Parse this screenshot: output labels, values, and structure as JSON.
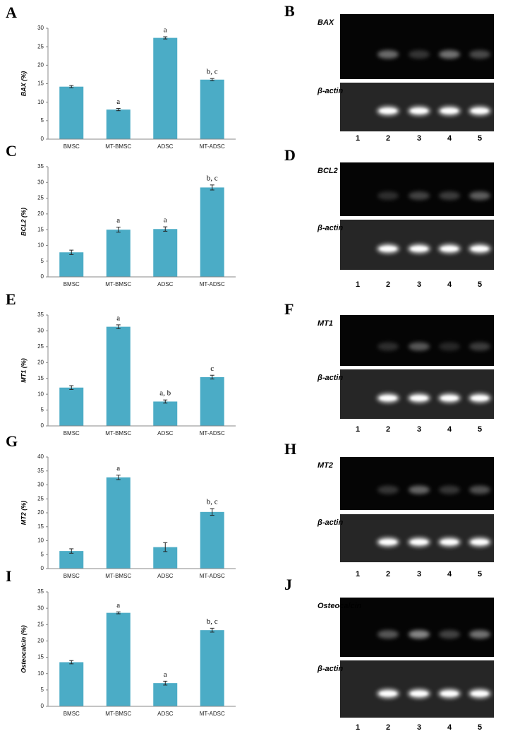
{
  "chart_data": [
    {
      "type": "bar",
      "panel": "A",
      "y_label": "BAX (%)",
      "categories": [
        "BMSC",
        "MT-BMSC",
        "ADSC",
        "MT-ADSC"
      ],
      "values": [
        14.2,
        8,
        27.4,
        16.1
      ],
      "errors": [
        0.3,
        0.3,
        0.3,
        0.3
      ],
      "annotations": [
        null,
        "a",
        "a",
        "b, c"
      ],
      "color": "#4bacc6",
      "ylim": [
        0,
        30
      ],
      "yticks": [
        0,
        5,
        10,
        15,
        20,
        25,
        30
      ]
    },
    {
      "type": "bar",
      "panel": "C",
      "y_label": "BCL2 (%)",
      "categories": [
        "BMSC",
        "MT-BMSC",
        "ADSC",
        "MT-ADSC"
      ],
      "values": [
        7.8,
        15,
        15.2,
        28.4
      ],
      "errors": [
        0.7,
        0.8,
        0.7,
        0.8
      ],
      "annotations": [
        null,
        "a",
        "a",
        "b, c"
      ],
      "color": "#4bacc6",
      "ylim": [
        0,
        35
      ],
      "yticks": [
        0,
        5,
        10,
        15,
        20,
        25,
        30,
        35
      ]
    },
    {
      "type": "bar",
      "panel": "E",
      "y_label": "MT1 (%)",
      "categories": [
        "BMSC",
        "MT-BMSC",
        "ADSC",
        "MT-ADSC"
      ],
      "values": [
        12.1,
        31.3,
        7.7,
        15.4
      ],
      "errors": [
        0.6,
        0.6,
        0.5,
        0.6
      ],
      "annotations": [
        null,
        "a",
        "a, b",
        "c"
      ],
      "color": "#4bacc6",
      "ylim": [
        0,
        35
      ],
      "yticks": [
        0,
        5,
        10,
        15,
        20,
        25,
        30,
        35
      ]
    },
    {
      "type": "bar",
      "panel": "G",
      "y_label": "MT2 (%)",
      "categories": [
        "BMSC",
        "MT-BMSC",
        "ADSC",
        "MT-ADSC"
      ],
      "values": [
        6.3,
        32.7,
        7.7,
        20.3
      ],
      "errors": [
        0.8,
        0.8,
        1.6,
        1.2
      ],
      "annotations": [
        null,
        "a",
        null,
        "b, c"
      ],
      "color": "#4bacc6",
      "ylim": [
        0,
        40
      ],
      "yticks": [
        0,
        5,
        10,
        15,
        20,
        25,
        30,
        35,
        40
      ]
    },
    {
      "type": "bar",
      "panel": "I",
      "y_label": "Osteocalcin (%)",
      "categories": [
        "BMSC",
        "MT-BMSC",
        "ADSC",
        "MT-ADSC"
      ],
      "values": [
        13.5,
        28.6,
        7.1,
        23.3
      ],
      "errors": [
        0.5,
        0.3,
        0.6,
        0.6
      ],
      "annotations": [
        null,
        "a",
        "a",
        "b, c"
      ],
      "color": "#4bacc6",
      "ylim": [
        0,
        35
      ],
      "yticks": [
        0,
        5,
        10,
        15,
        20,
        25,
        30,
        35
      ]
    }
  ],
  "gels": [
    {
      "panel": "B",
      "gene": "BAX",
      "control": "β-actin",
      "lanes": [
        1,
        2,
        3,
        4,
        5
      ]
    },
    {
      "panel": "D",
      "gene": "BCL2",
      "control": "β-actin",
      "lanes": [
        1,
        2,
        3,
        4,
        5
      ]
    },
    {
      "panel": "F",
      "gene": "MT1",
      "control": "β-actin",
      "lanes": [
        1,
        2,
        3,
        4,
        5
      ]
    },
    {
      "panel": "H",
      "gene": "MT2",
      "control": "β-actin",
      "lanes": [
        1,
        2,
        3,
        4,
        5
      ]
    },
    {
      "panel": "J",
      "gene": "Osteocalcin",
      "control": "β-actin",
      "lanes": [
        1,
        2,
        3,
        4,
        5
      ]
    }
  ]
}
